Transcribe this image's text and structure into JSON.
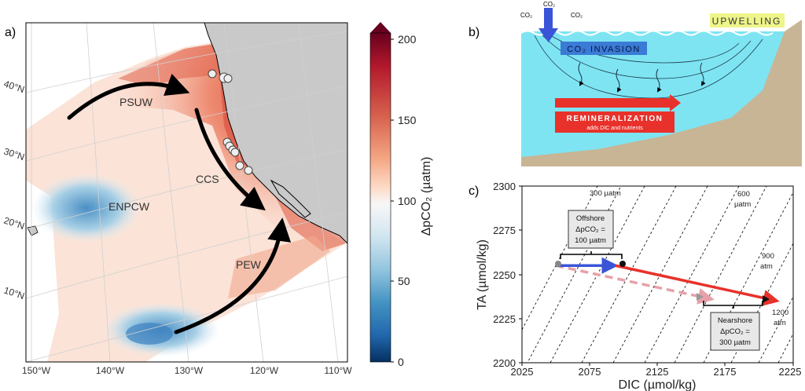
{
  "panel_a": {
    "label": "a)",
    "lat_labels": [
      "40°N",
      "30°N",
      "20°N",
      "10°N"
    ],
    "lon_labels": [
      "150°W",
      "140°W",
      "130°W",
      "120°W",
      "110°W"
    ],
    "regions": [
      "PSUW",
      "CCS",
      "ENPCW",
      "PEW"
    ],
    "colorbar": {
      "title": "ΔpCO₂ (µatm)",
      "ticks": [
        "200",
        "150",
        "100",
        "50",
        "0"
      ],
      "colors": [
        "#67001f",
        "#b2182b",
        "#d6604d",
        "#f4a582",
        "#fddbc7",
        "#f7f7f7",
        "#d1e5f0",
        "#92c5de",
        "#4393c3",
        "#2166ac",
        "#053061"
      ]
    },
    "colors": {
      "land": "#c9c9c9",
      "arrow": "#000000"
    }
  },
  "panel_b": {
    "label": "b)",
    "co2_labels": [
      "CO₂",
      "CO₂",
      "CO₂"
    ],
    "upwelling": "UPWELLING",
    "invasion": "CO₂ INVASION",
    "remineralization": "REMINERALIZATION",
    "remin_sub": "adds DIC and nutrients",
    "colors": {
      "ocean": "#7ee4f2",
      "seafloor": "#c8b595",
      "invasion": "#3a7bd5",
      "remin": "#e8312a",
      "upwelling": "#eef58a"
    }
  },
  "panel_c": {
    "label": "c)",
    "xlabel": "DIC (µmol/kg)",
    "ylabel": "TA (µmol/kg)",
    "xticks": [
      "2025",
      "2075",
      "2125",
      "2175",
      "2225"
    ],
    "yticks": [
      "2200",
      "2225",
      "2250",
      "2275",
      "2300"
    ],
    "isolines": [
      "300 µatm",
      "600",
      "µatm",
      "900",
      "atm",
      "1200",
      "atm"
    ],
    "offshore_box": [
      "Offshore",
      "ΔpCO₂ =",
      "100 µatm"
    ],
    "nearshore_box": [
      "Nearshore",
      "ΔpCO₂ =",
      "300 µatm"
    ],
    "chart_data": {
      "type": "line",
      "xlim": [
        2025,
        2225
      ],
      "ylim": [
        2200,
        2300
      ],
      "series": [
        {
          "color": "#3a54d8",
          "x": [
            2050,
            2094
          ],
          "y": [
            2255,
            2255
          ]
        },
        {
          "color": "#e8312a",
          "x": [
            2094,
            2213
          ],
          "y": [
            2255,
            2235
          ]
        },
        {
          "color": "#e8a0a8",
          "x": [
            2050,
            2165
          ],
          "y": [
            2255,
            2236
          ]
        }
      ]
    }
  }
}
